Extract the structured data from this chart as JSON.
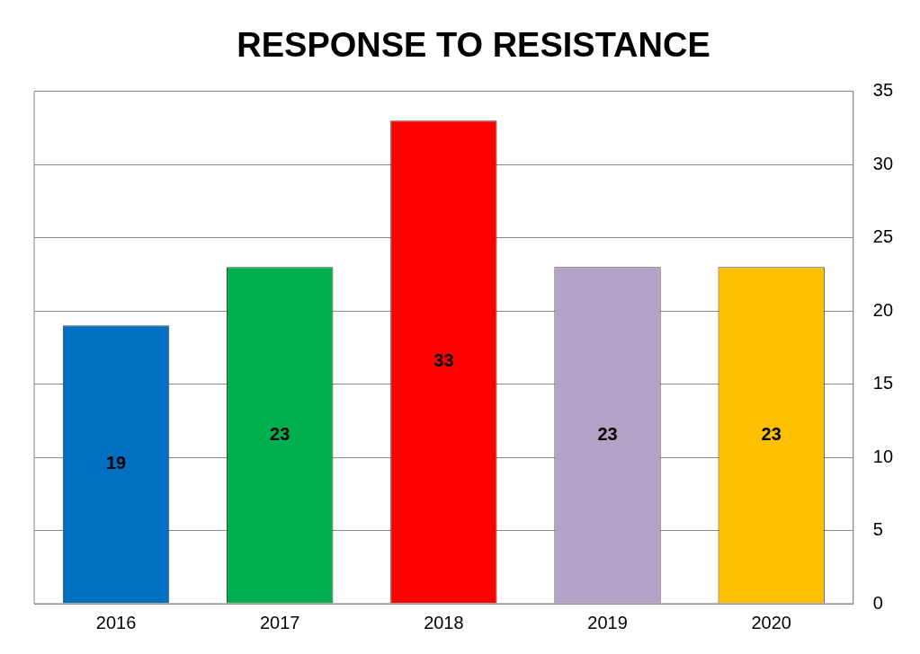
{
  "chart_data": {
    "type": "bar",
    "title": "RESPONSE TO RESISTANCE",
    "categories": [
      "2016",
      "2017",
      "2018",
      "2019",
      "2020"
    ],
    "values": [
      19,
      23,
      33,
      23,
      23
    ],
    "colors": [
      "#0070c0",
      "#00b050",
      "#ff0000",
      "#b3a2c7",
      "#ffc000"
    ],
    "ylim": [
      0,
      35
    ],
    "yticks": [
      0,
      5,
      10,
      15,
      20,
      25,
      30,
      35
    ],
    "grid": "y",
    "data_labels": true
  }
}
